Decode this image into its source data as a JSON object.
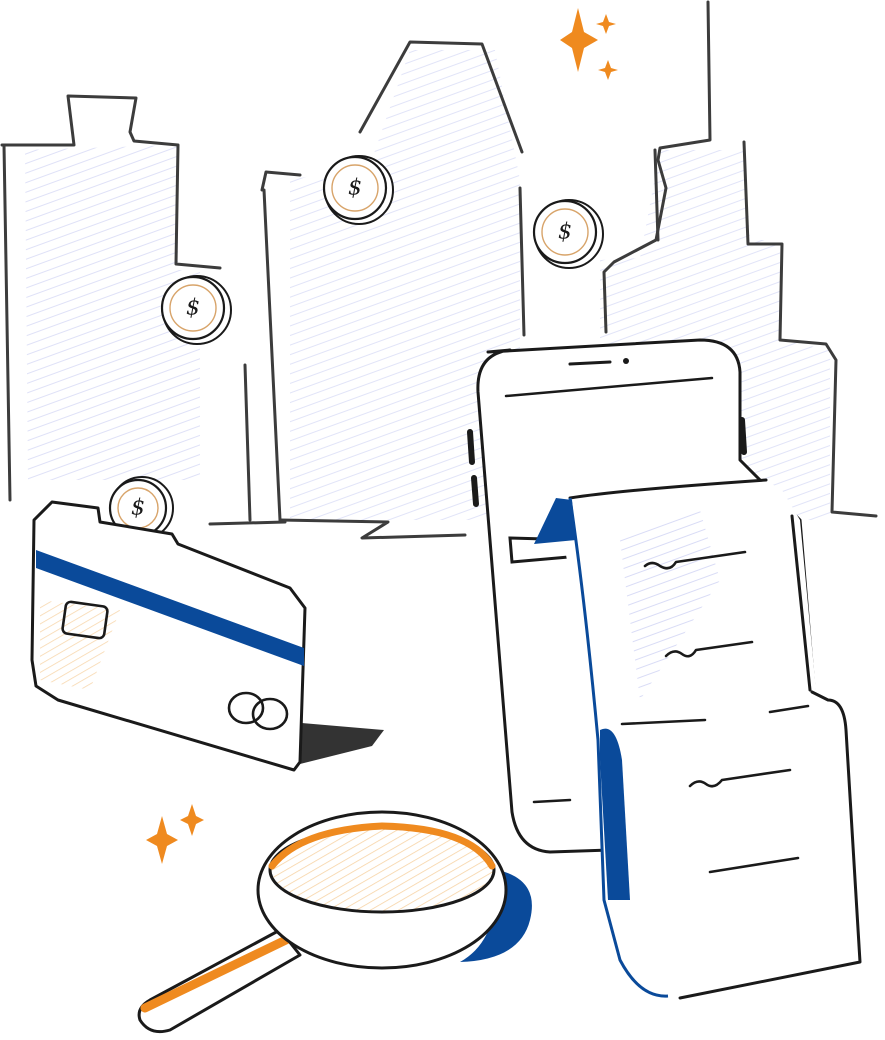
{
  "illustration": {
    "subject": "finance-doodle",
    "colors": {
      "ink": "#1a1a1a",
      "outline_grey": "#3c3c3c",
      "accent_blue": "#0a4a9a",
      "accent_orange": "#ef8a1f",
      "hatch_lavender": "#c9cdf2",
      "hatch_peach": "#f7d3a5",
      "background": "#ffffff"
    },
    "coins": [
      {
        "symbol": "$"
      },
      {
        "symbol": "$"
      },
      {
        "symbol": "$"
      },
      {
        "symbol": "$"
      }
    ],
    "icons": [
      "building-icon",
      "coin-icon",
      "credit-card-icon",
      "smartphone-icon",
      "receipt-icon",
      "magnifying-glass-icon",
      "sparkle-icon"
    ]
  }
}
